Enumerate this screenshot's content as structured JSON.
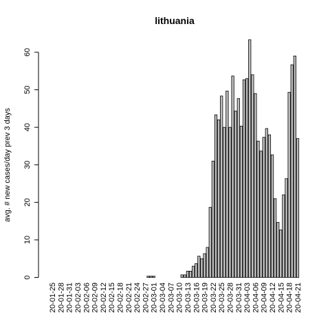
{
  "chart_data": {
    "type": "bar",
    "title": "lithuania",
    "xlabel": "",
    "ylabel": "avg. # new cases/day prev  3  days",
    "ylim": [
      0,
      65
    ],
    "yticks": [
      0,
      10,
      20,
      30,
      40,
      50,
      60
    ],
    "bar_color": "#bebebe",
    "categories": [
      "20-01-25",
      "20-01-26",
      "20-01-27",
      "20-01-28",
      "20-01-29",
      "20-01-30",
      "20-01-31",
      "20-02-01",
      "20-02-02",
      "20-02-03",
      "20-02-04",
      "20-02-05",
      "20-02-06",
      "20-02-07",
      "20-02-08",
      "20-02-09",
      "20-02-10",
      "20-02-11",
      "20-02-12",
      "20-02-13",
      "20-02-14",
      "20-02-15",
      "20-02-16",
      "20-02-17",
      "20-02-18",
      "20-02-19",
      "20-02-20",
      "20-02-21",
      "20-02-22",
      "20-02-23",
      "20-02-24",
      "20-02-25",
      "20-02-26",
      "20-02-27",
      "20-02-28",
      "20-02-29",
      "20-03-01",
      "20-03-02",
      "20-03-03",
      "20-03-04",
      "20-03-05",
      "20-03-06",
      "20-03-07",
      "20-03-08",
      "20-03-09",
      "20-03-10",
      "20-03-11",
      "20-03-12",
      "20-03-13",
      "20-03-14",
      "20-03-15",
      "20-03-16",
      "20-03-17",
      "20-03-18",
      "20-03-19",
      "20-03-20",
      "20-03-21",
      "20-03-22",
      "20-03-23",
      "20-03-24",
      "20-03-25",
      "20-03-26",
      "20-03-27",
      "20-03-28",
      "20-03-29",
      "20-03-30",
      "20-03-31",
      "20-04-01",
      "20-04-02",
      "20-04-03",
      "20-04-04",
      "20-04-05",
      "20-04-06",
      "20-04-07",
      "20-04-08",
      "20-04-09",
      "20-04-10",
      "20-04-11",
      "20-04-12",
      "20-04-13",
      "20-04-14",
      "20-04-15",
      "20-04-16",
      "20-04-17",
      "20-04-18",
      "20-04-19",
      "20-04-20",
      "20-04-21"
    ],
    "tick_labels": [
      "20-01-25",
      "20-01-28",
      "20-01-31",
      "20-02-03",
      "20-02-06",
      "20-02-09",
      "20-02-12",
      "20-02-15",
      "20-02-18",
      "20-02-21",
      "20-02-24",
      "20-02-27",
      "20-03-01",
      "20-03-04",
      "20-03-07",
      "20-03-10",
      "20-03-13",
      "20-03-16",
      "20-03-19",
      "20-03-22",
      "20-03-25",
      "20-03-28",
      "20-03-31",
      "20-04-03",
      "20-04-06",
      "20-04-09",
      "20-04-12",
      "20-04-15",
      "20-04-18",
      "20-04-21"
    ],
    "values": [
      0,
      0,
      0,
      0,
      0,
      0,
      0,
      0,
      0,
      0,
      0,
      0,
      0,
      0,
      0,
      0,
      0,
      0,
      0,
      0,
      0,
      0,
      0,
      0,
      0,
      0,
      0,
      0,
      0,
      0,
      0,
      0,
      0,
      0,
      0.33,
      0.33,
      0.33,
      0,
      0,
      0,
      0,
      0,
      0,
      0,
      0,
      0,
      0.67,
      0.67,
      1.67,
      1.67,
      3.0,
      3.67,
      5.67,
      5.0,
      6.33,
      8.0,
      18.67,
      31.0,
      43.33,
      42.0,
      48.33,
      40.0,
      49.67,
      40.0,
      53.67,
      44.33,
      47.67,
      40.33,
      52.67,
      53.0,
      63.33,
      54.0,
      49.0,
      36.33,
      33.67,
      37.33,
      39.67,
      38.0,
      32.67,
      21.0,
      14.67,
      12.67,
      22.0,
      26.33,
      49.33,
      56.67,
      59.0,
      37.0
    ]
  }
}
